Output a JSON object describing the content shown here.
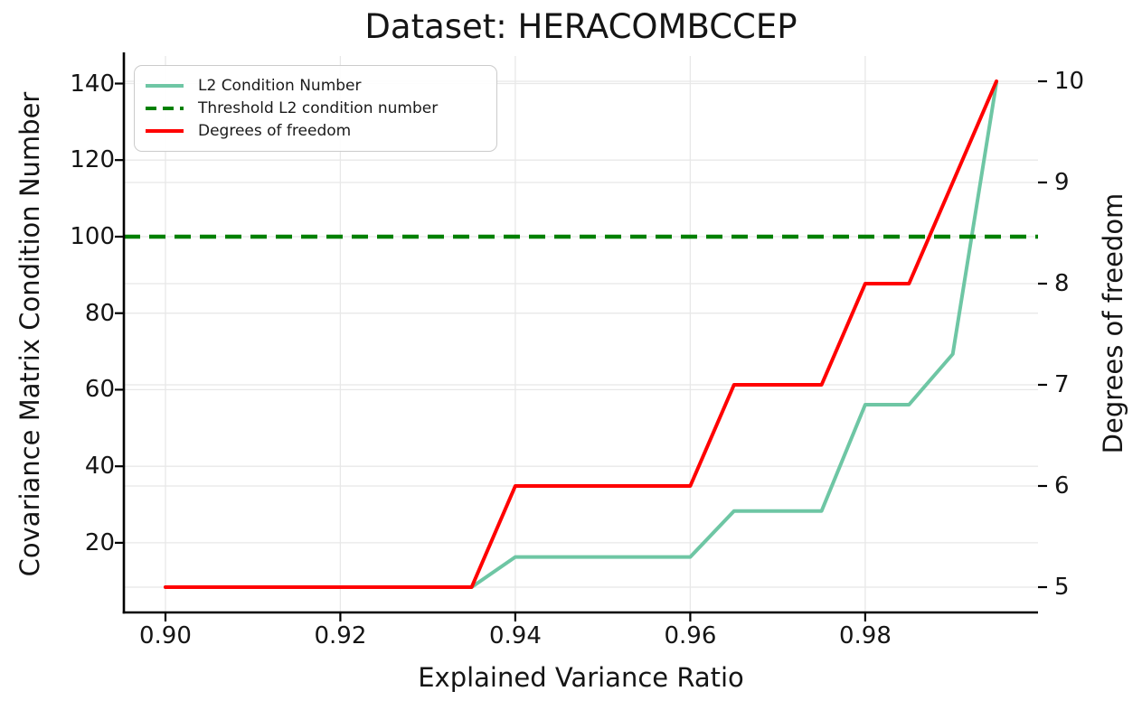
{
  "chart_data": {
    "type": "line",
    "title": "Dataset: HERACOMBCCEP",
    "xlabel": "Explained Variance Ratio",
    "ylabel_left": "Covariance Matrix Condition Number",
    "ylabel_right": "Degrees of freedom",
    "x": [
      0.9,
      0.905,
      0.91,
      0.915,
      0.92,
      0.925,
      0.93,
      0.935,
      0.94,
      0.945,
      0.95,
      0.955,
      0.96,
      0.965,
      0.97,
      0.975,
      0.98,
      0.985,
      0.99,
      0.995
    ],
    "series": [
      {
        "name": "L2 Condition Number",
        "axis": "left",
        "style": "solid",
        "color": "#6ec6a4",
        "values": [
          8.4,
          8.4,
          8.4,
          8.4,
          8.4,
          8.4,
          8.4,
          8.4,
          16.3,
          16.3,
          16.3,
          16.3,
          16.3,
          28.3,
          28.3,
          28.3,
          56.1,
          56.1,
          69.3,
          140.2
        ]
      },
      {
        "name": "Threshold L2 condition number",
        "axis": "left",
        "style": "dashed",
        "color": "#008000",
        "threshold": 100
      },
      {
        "name": "Degrees of freedom",
        "axis": "right",
        "style": "solid",
        "color": "#ff0000",
        "values": [
          5,
          5,
          5,
          5,
          5,
          5,
          5,
          5,
          6,
          6,
          6,
          6,
          6,
          7,
          7,
          7,
          8,
          8,
          9,
          10
        ]
      }
    ],
    "xlim": [
      0.89525,
      0.99975
    ],
    "ylim_left": [
      1.8,
      147.2
    ],
    "ylim_right": [
      4.75,
      10.25
    ],
    "xticks": [
      0.9,
      0.92,
      0.94,
      0.96,
      0.98
    ],
    "xtick_labels": [
      "0.90",
      "0.92",
      "0.94",
      "0.96",
      "0.98"
    ],
    "yticks_left": [
      20,
      40,
      60,
      80,
      100,
      120,
      140
    ],
    "ytick_labels_left": [
      "20",
      "40",
      "60",
      "80",
      "100",
      "120",
      "140"
    ],
    "yticks_right": [
      5,
      6,
      7,
      8,
      9,
      10
    ],
    "ytick_labels_right": [
      "5",
      "6",
      "7",
      "8",
      "9",
      "10"
    ],
    "grid": true,
    "legend_position": "upper left",
    "colors": {
      "grid": "#e8e8e8",
      "spine": "#000000",
      "text": "#151515",
      "legend_border": "#cbcbcb"
    }
  }
}
